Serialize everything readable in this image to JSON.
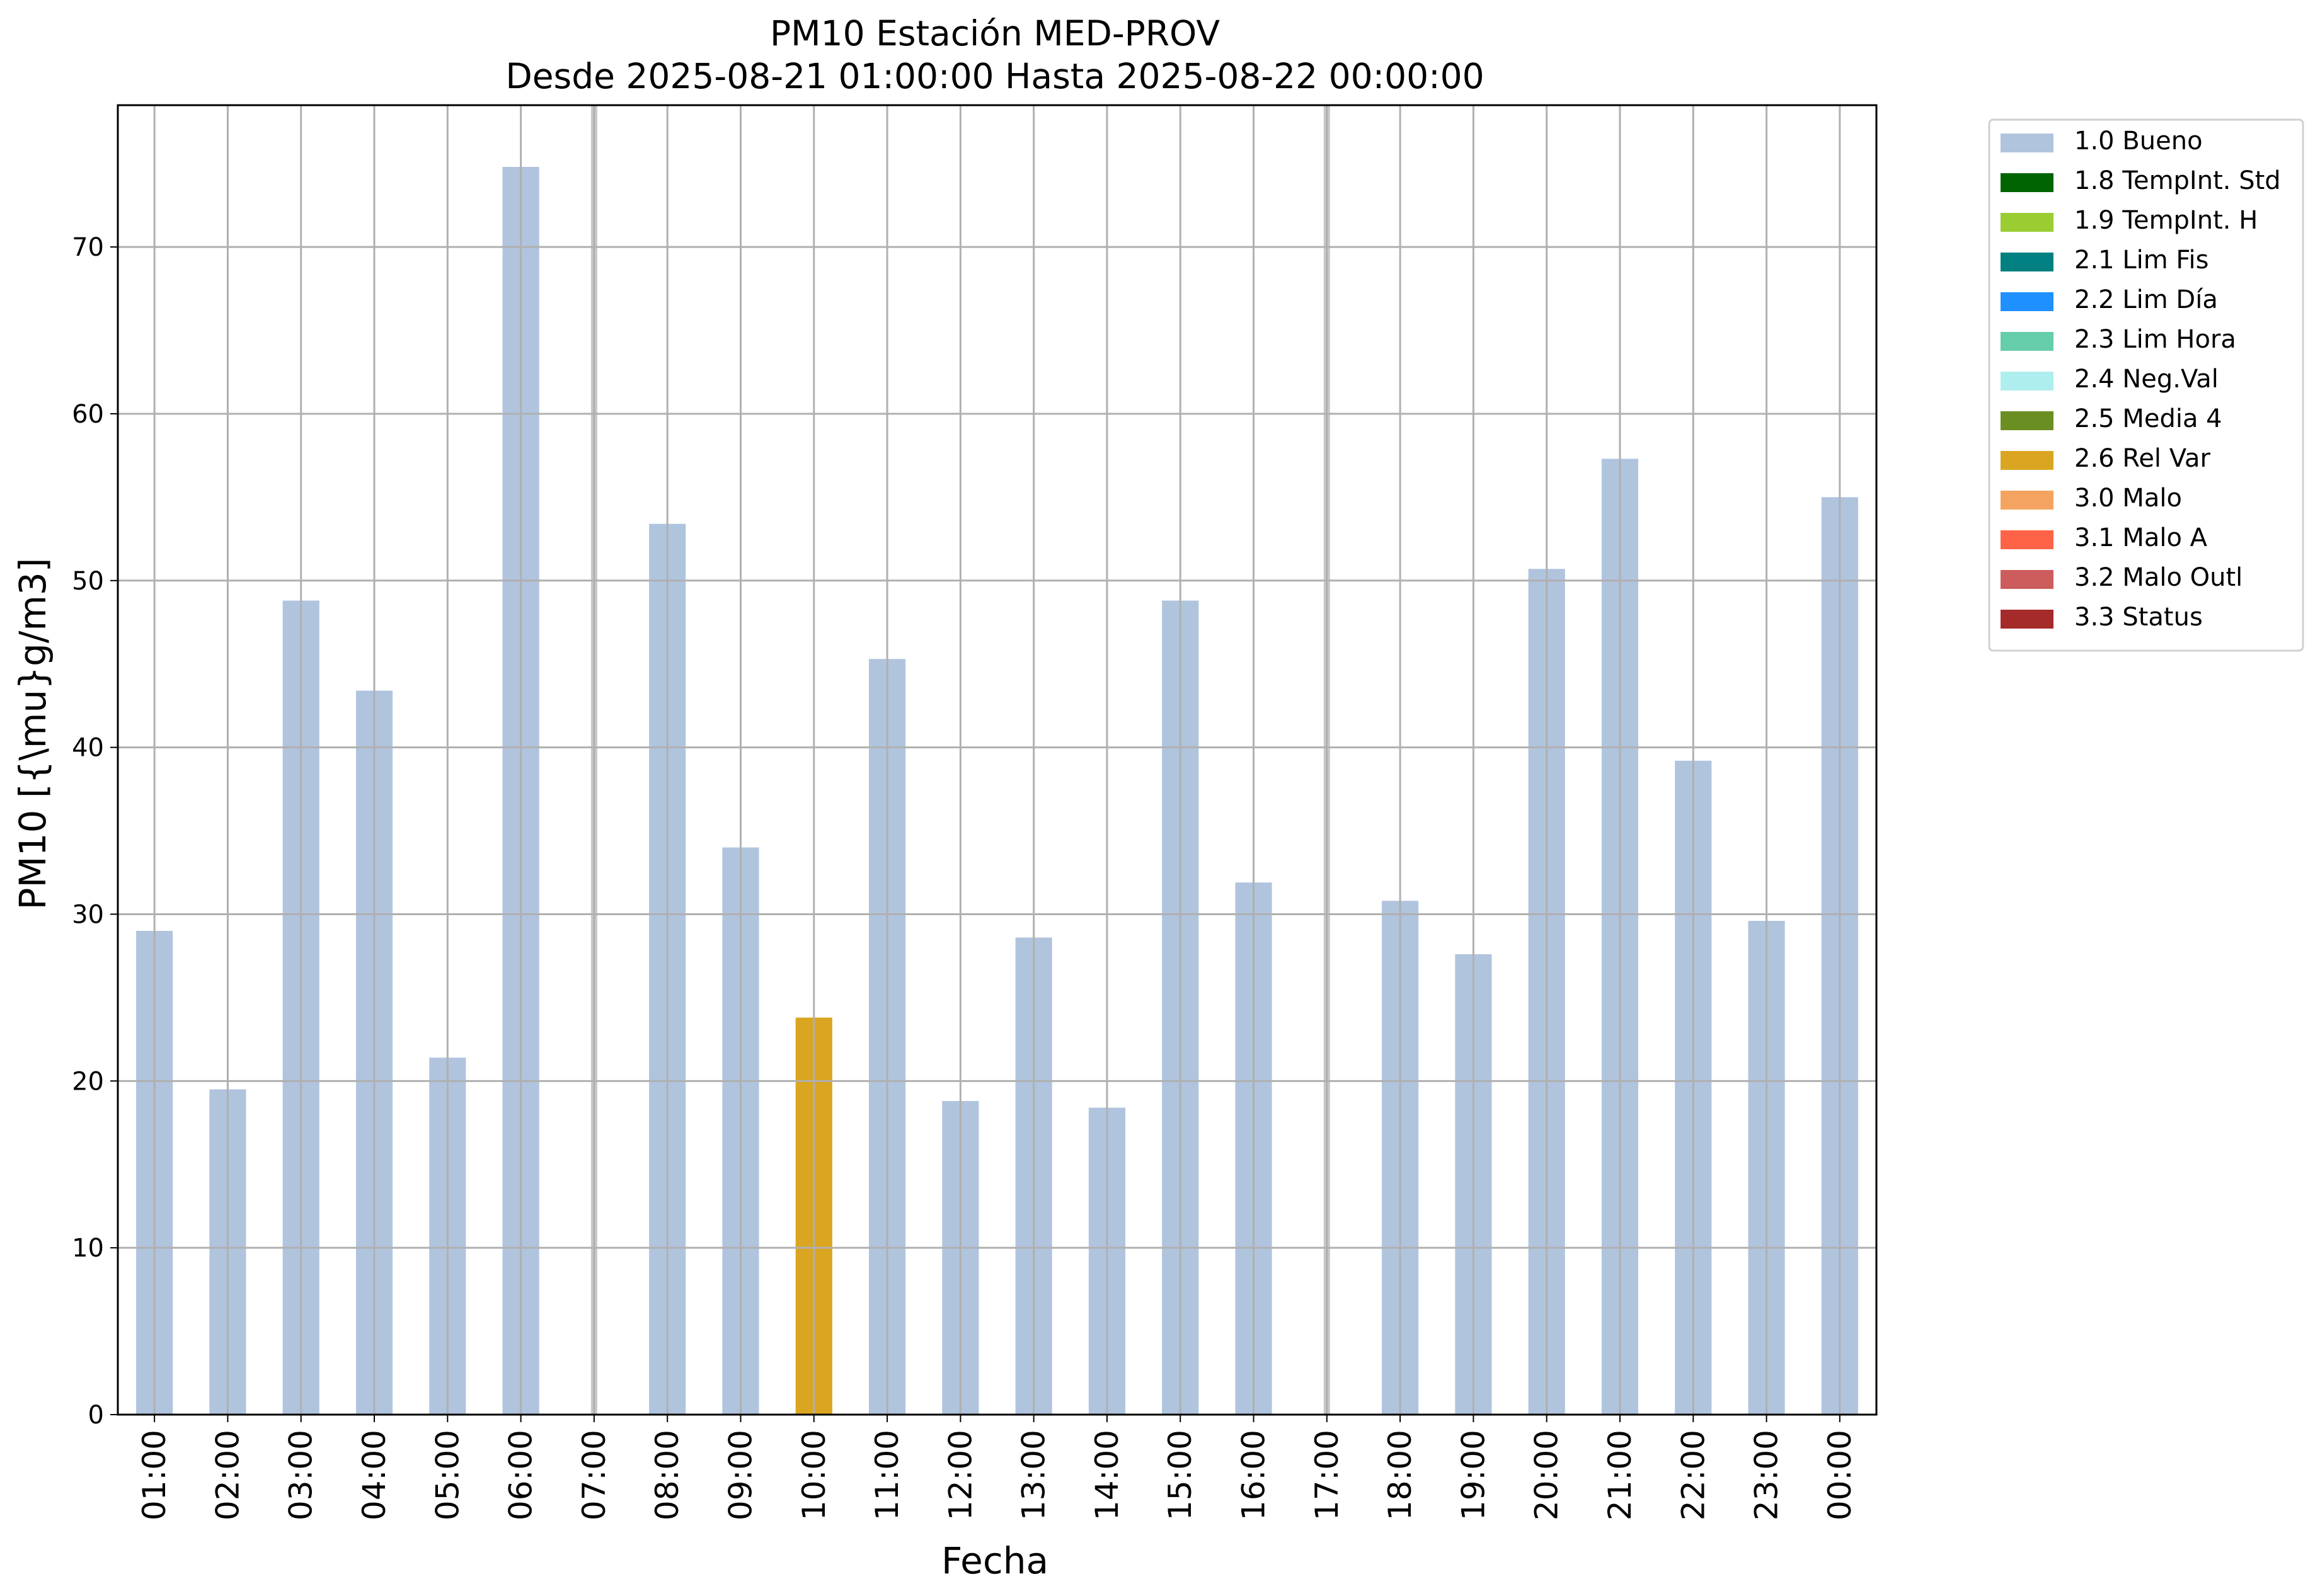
{
  "chart_data": {
    "type": "bar",
    "title": "PM10 Estación MED-PROV",
    "subtitle": "Desde 2025-08-21 01:00:00 Hasta 2025-08-22 00:00:00",
    "xlabel": "Fecha",
    "ylabel": "PM10 [{\\mu}g/m3]",
    "ylim": [
      0,
      78.5
    ],
    "yticks": [
      0,
      10,
      20,
      30,
      40,
      50,
      60,
      70
    ],
    "grid": true,
    "legend_position": "outside-right-top",
    "categories": [
      "01:00",
      "02:00",
      "03:00",
      "04:00",
      "05:00",
      "06:00",
      "07:00",
      "08:00",
      "09:00",
      "10:00",
      "11:00",
      "12:00",
      "13:00",
      "14:00",
      "15:00",
      "16:00",
      "17:00",
      "18:00",
      "19:00",
      "20:00",
      "21:00",
      "22:00",
      "23:00",
      "00:00"
    ],
    "values": [
      29.0,
      19.5,
      48.8,
      43.4,
      21.4,
      74.8,
      null,
      53.4,
      34.0,
      23.8,
      45.3,
      18.8,
      28.6,
      18.4,
      48.8,
      31.9,
      null,
      30.8,
      27.6,
      50.7,
      57.3,
      39.2,
      29.6,
      55.0
    ],
    "flags": [
      "1.0 Bueno",
      "1.0 Bueno",
      "1.0 Bueno",
      "1.0 Bueno",
      "1.0 Bueno",
      "1.0 Bueno",
      null,
      "1.0 Bueno",
      "1.0 Bueno",
      "2.6 Rel Var",
      "1.0 Bueno",
      "1.0 Bueno",
      "1.0 Bueno",
      "1.0 Bueno",
      "1.0 Bueno",
      "1.0 Bueno",
      null,
      "1.0 Bueno",
      "1.0 Bueno",
      "1.0 Bueno",
      "1.0 Bueno",
      "1.0 Bueno",
      "1.0 Bueno",
      "1.0 Bueno"
    ],
    "missing_markers": [
      "07:00",
      "17:00"
    ],
    "legend": [
      {
        "label": "1.0 Bueno",
        "color": "#b0c4de"
      },
      {
        "label": "1.8 TempInt. Std",
        "color": "#006400"
      },
      {
        "label": "1.9 TempInt. H",
        "color": "#9acd32"
      },
      {
        "label": "2.1 Lim Fis",
        "color": "#008080"
      },
      {
        "label": "2.2 Lim Día",
        "color": "#1e90ff"
      },
      {
        "label": "2.3 Lim Hora",
        "color": "#66cdaa"
      },
      {
        "label": "2.4 Neg.Val",
        "color": "#afeeee"
      },
      {
        "label": "2.5 Media 4",
        "color": "#6b8e23"
      },
      {
        "label": "2.6 Rel Var",
        "color": "#daa520"
      },
      {
        "label": "3.0 Malo",
        "color": "#f4a460"
      },
      {
        "label": "3.1 Malo A",
        "color": "#ff6347"
      },
      {
        "label": "3.2 Malo Outl",
        "color": "#cd5c5c"
      },
      {
        "label": "3.3 Status",
        "color": "#a52a2a"
      }
    ]
  }
}
